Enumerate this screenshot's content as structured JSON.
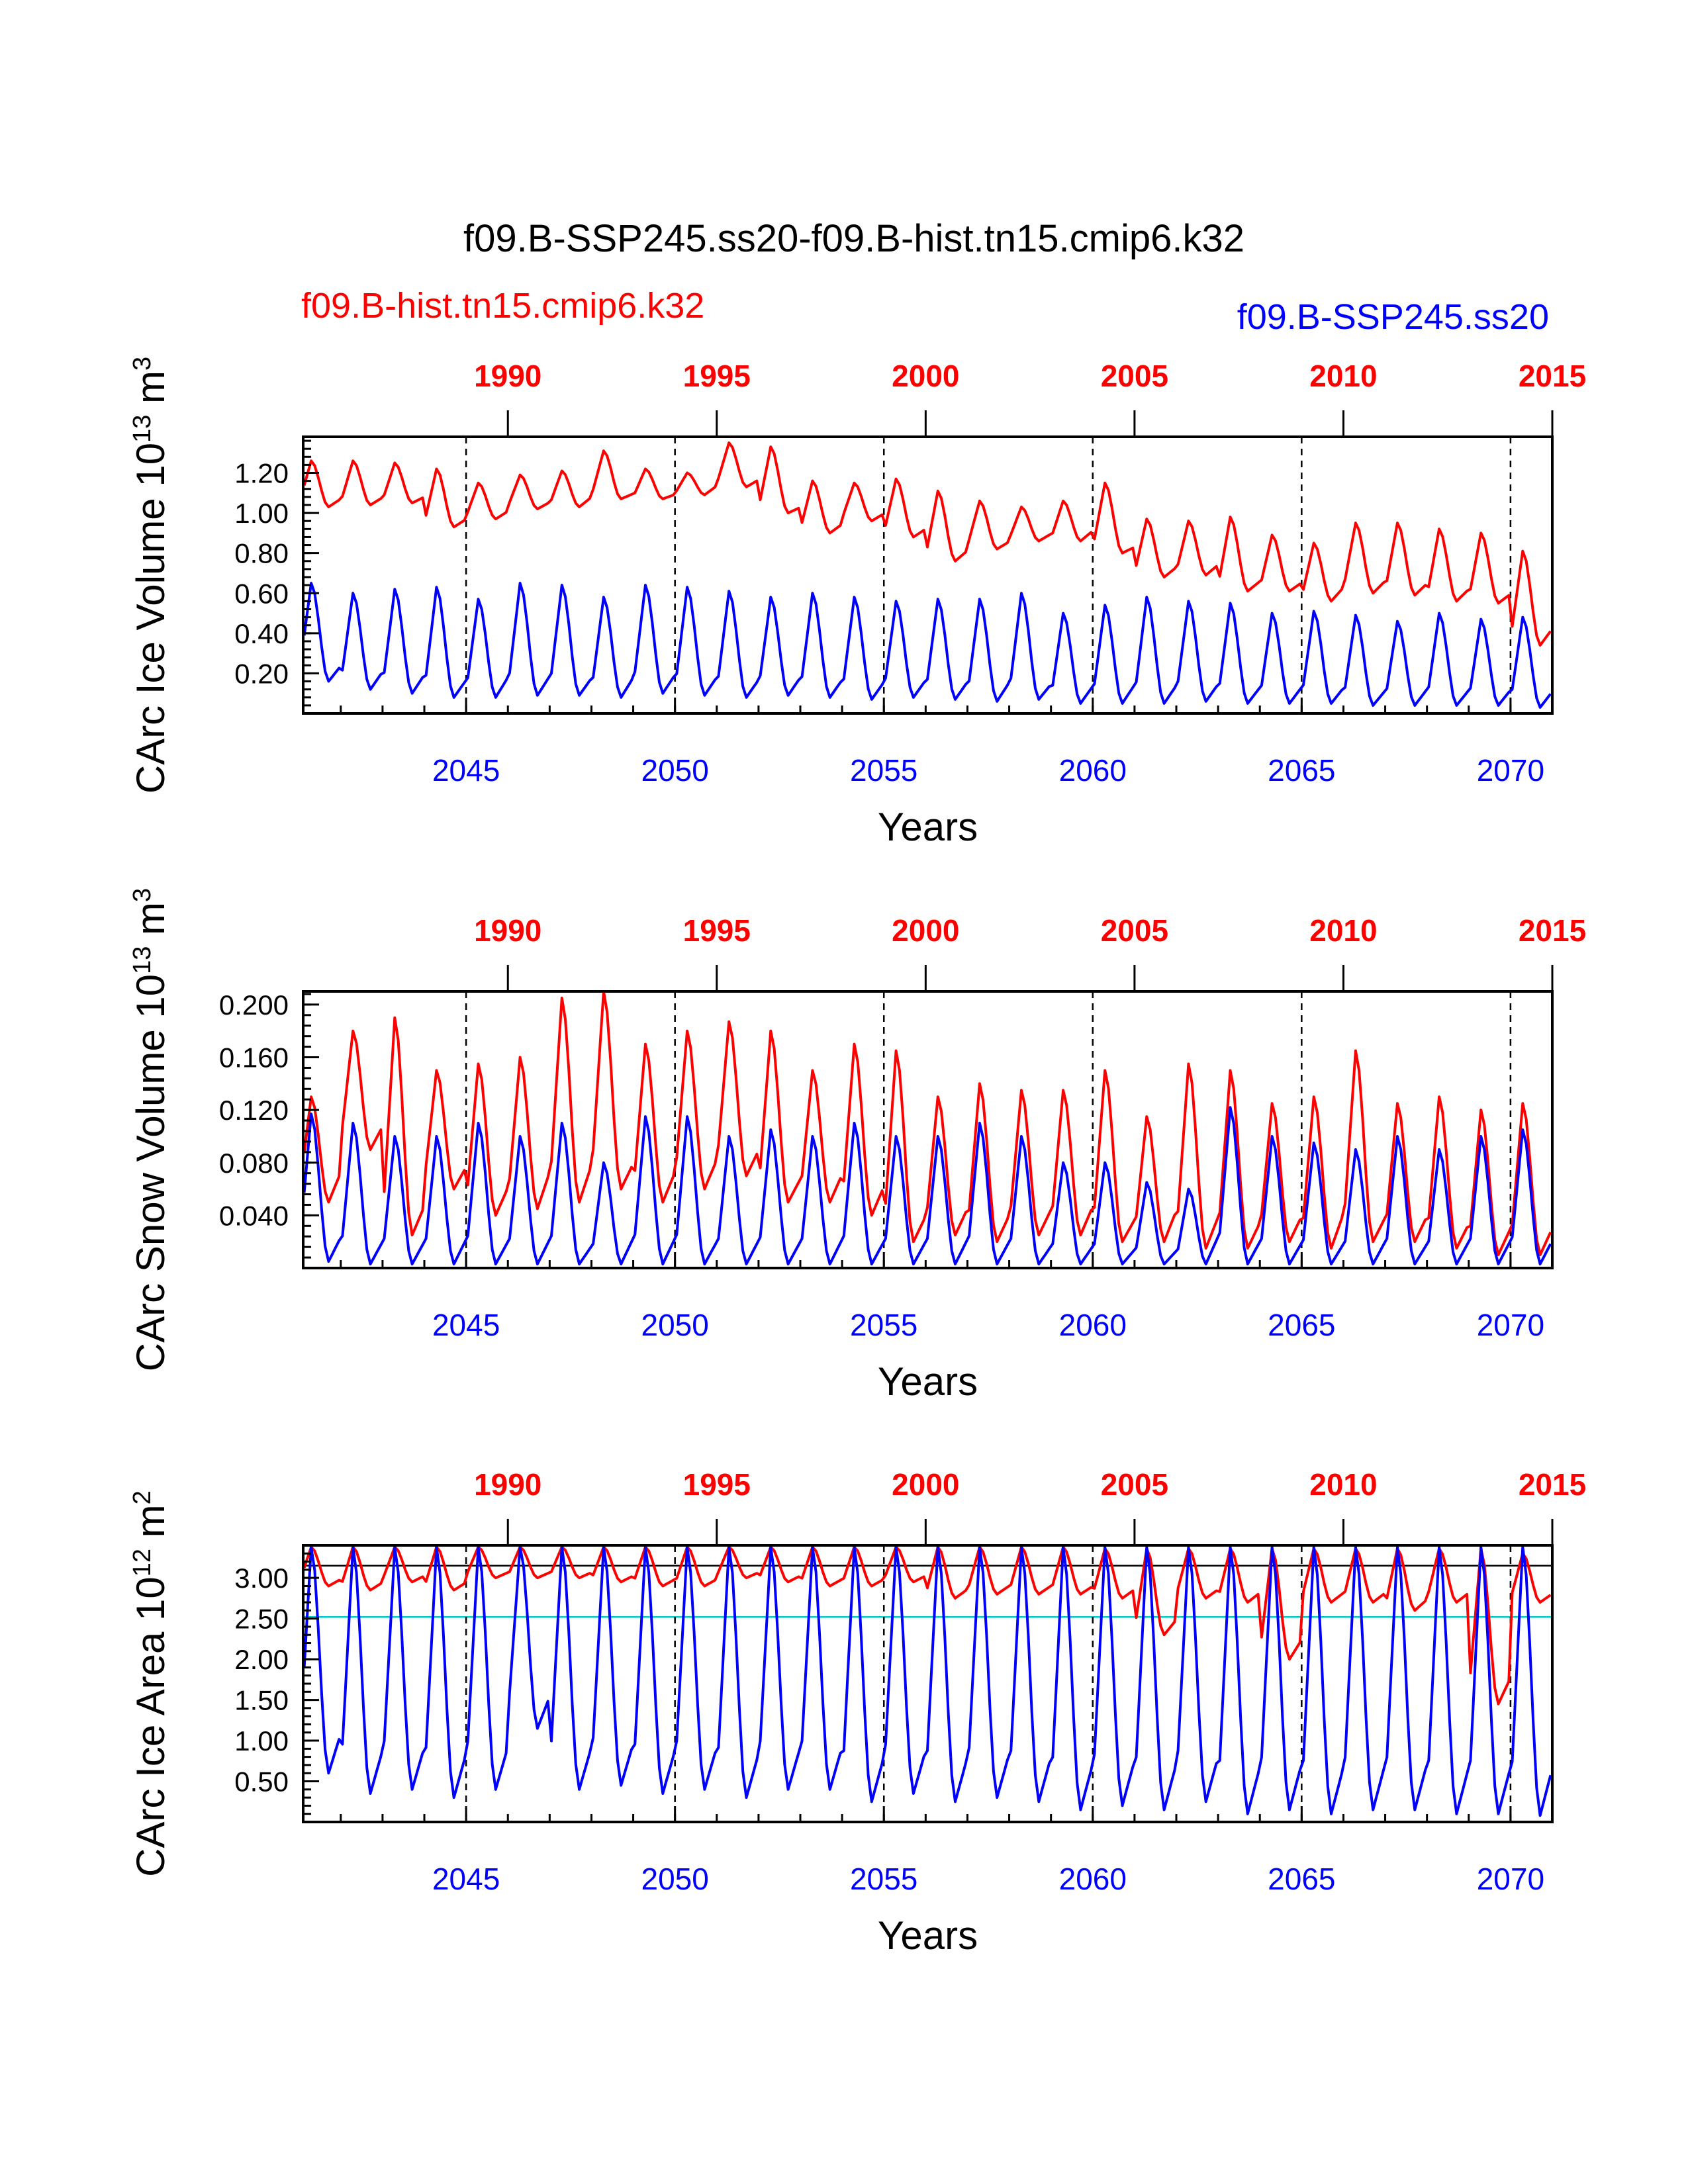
{
  "title": "f09.B-SSP245.ss20-f09.B-hist.tn15.cmip6.k32",
  "legend": {
    "left_label": "f09.B-hist.tn15.cmip6.k32",
    "right_label": "f09.B-SSP245.ss20"
  },
  "colors": {
    "hist": "#ff0000",
    "ssp": "#0000ff",
    "reference_line": "#00cccc",
    "frame": "#000000"
  },
  "chart_data": [
    {
      "type": "line",
      "id": "ice_volume",
      "ylabel_main": "CArc Ice Volume 10",
      "ylabel_exp": "13",
      "ylabel_unit": " m",
      "ylabel_unit_exp": "3",
      "xlabel": "Years",
      "ylim": [
        0.0,
        1.38
      ],
      "yticks": [
        0.2,
        0.4,
        0.6,
        0.8,
        1.0,
        1.2
      ],
      "ytick_labels": [
        "0.20",
        "0.40",
        "0.60",
        "0.80",
        "1.00",
        "1.20"
      ],
      "x_bottom_ticks": [
        2045,
        2050,
        2055,
        2060,
        2065,
        2070
      ],
      "x_top_ticks": [
        "1990",
        "1995",
        "2000",
        "2005",
        "2010",
        "2015"
      ],
      "xlim": [
        2041.1,
        2071.0
      ],
      "series": [
        {
          "name": "f09.B-hist.tn15.cmip6.k32",
          "color": "#ff0000",
          "annual_max": [
            1.26,
            1.26,
            1.25,
            1.22,
            1.15,
            1.19,
            1.21,
            1.31,
            1.22,
            1.2,
            1.35,
            1.33,
            1.16,
            1.15,
            1.17,
            1.11,
            1.06,
            1.03,
            1.06,
            1.15,
            0.97,
            0.96,
            0.98,
            0.89,
            0.85,
            0.95,
            0.95,
            0.92,
            0.9,
            0.81
          ],
          "annual_min": [
            1.03,
            1.04,
            1.05,
            0.93,
            0.97,
            1.02,
            1.03,
            1.07,
            1.07,
            1.09,
            1.13,
            1.0,
            0.9,
            0.96,
            0.88,
            0.76,
            0.82,
            0.86,
            0.86,
            0.8,
            0.68,
            0.69,
            0.61,
            0.61,
            0.56,
            0.6,
            0.59,
            0.56,
            0.55,
            0.34
          ]
        },
        {
          "name": "f09.B-SSP245.ss20",
          "color": "#0000ff",
          "annual_max": [
            0.65,
            0.6,
            0.62,
            0.63,
            0.57,
            0.65,
            0.64,
            0.58,
            0.64,
            0.63,
            0.61,
            0.58,
            0.6,
            0.58,
            0.56,
            0.57,
            0.57,
            0.6,
            0.5,
            0.54,
            0.58,
            0.56,
            0.55,
            0.5,
            0.51,
            0.49,
            0.46,
            0.5,
            0.47,
            0.48
          ],
          "annual_min": [
            0.16,
            0.12,
            0.1,
            0.08,
            0.08,
            0.09,
            0.09,
            0.08,
            0.1,
            0.09,
            0.08,
            0.09,
            0.08,
            0.07,
            0.08,
            0.07,
            0.06,
            0.07,
            0.05,
            0.05,
            0.05,
            0.06,
            0.05,
            0.05,
            0.05,
            0.04,
            0.04,
            0.04,
            0.04,
            0.03
          ]
        }
      ]
    },
    {
      "type": "line",
      "id": "snow_volume",
      "ylabel_main": "CArc Snow Volume 10",
      "ylabel_exp": "13",
      "ylabel_unit": " m",
      "ylabel_unit_exp": "3",
      "xlabel": "Years",
      "ylim": [
        0.0,
        0.21
      ],
      "yticks": [
        0.04,
        0.08,
        0.12,
        0.16,
        0.2
      ],
      "ytick_labels": [
        "0.040",
        "0.080",
        "0.120",
        "0.160",
        "0.200"
      ],
      "x_bottom_ticks": [
        2045,
        2050,
        2055,
        2060,
        2065,
        2070
      ],
      "x_top_ticks": [
        "1990",
        "1995",
        "2000",
        "2005",
        "2010",
        "2015"
      ],
      "xlim": [
        2041.1,
        2071.0
      ],
      "series": [
        {
          "name": "f09.B-hist.tn15.cmip6.k32",
          "color": "#ff0000",
          "annual_max": [
            0.13,
            0.18,
            0.19,
            0.15,
            0.155,
            0.16,
            0.205,
            0.21,
            0.17,
            0.18,
            0.187,
            0.18,
            0.15,
            0.17,
            0.165,
            0.13,
            0.14,
            0.135,
            0.135,
            0.15,
            0.115,
            0.155,
            0.15,
            0.125,
            0.13,
            0.165,
            0.125,
            0.13,
            0.12,
            0.125
          ],
          "annual_min": [
            0.05,
            0.09,
            0.025,
            0.06,
            0.04,
            0.045,
            0.05,
            0.06,
            0.05,
            0.06,
            0.07,
            0.05,
            0.05,
            0.04,
            0.02,
            0.025,
            0.02,
            0.025,
            0.025,
            0.02,
            0.02,
            0.015,
            0.015,
            0.02,
            0.015,
            0.02,
            0.02,
            0.015,
            0.01,
            0.01
          ]
        },
        {
          "name": "f09.B-SSP245.ss20",
          "color": "#0000ff",
          "annual_max": [
            0.117,
            0.11,
            0.1,
            0.1,
            0.11,
            0.1,
            0.11,
            0.08,
            0.115,
            0.115,
            0.1,
            0.105,
            0.1,
            0.11,
            0.1,
            0.1,
            0.11,
            0.1,
            0.08,
            0.08,
            0.065,
            0.06,
            0.122,
            0.1,
            0.095,
            0.09,
            0.1,
            0.09,
            0.1,
            0.105
          ],
          "annual_min": [
            0.005,
            0.003,
            0.003,
            0.003,
            0.003,
            0.003,
            0.003,
            0.003,
            0.003,
            0.003,
            0.003,
            0.003,
            0.003,
            0.003,
            0.003,
            0.003,
            0.003,
            0.003,
            0.003,
            0.003,
            0.003,
            0.003,
            0.003,
            0.003,
            0.003,
            0.003,
            0.003,
            0.003,
            0.003,
            0.003
          ]
        }
      ]
    },
    {
      "type": "line",
      "id": "ice_area",
      "ylabel_main": "CArc Ice Area 10",
      "ylabel_exp": "12",
      "ylabel_unit": " m",
      "ylabel_unit_exp": "2",
      "xlabel": "Years",
      "ylim": [
        0.0,
        3.4
      ],
      "yticks": [
        0.5,
        1.0,
        1.5,
        2.0,
        2.5,
        3.0
      ],
      "ytick_labels": [
        "0.50",
        "1.00",
        "1.50",
        "2.00",
        "2.50",
        "3.00"
      ],
      "x_bottom_ticks": [
        2045,
        2050,
        2055,
        2060,
        2065,
        2070
      ],
      "x_top_ticks": [
        "1990",
        "1995",
        "2000",
        "2005",
        "2010",
        "2015"
      ],
      "xlim": [
        2041.1,
        2071.0
      ],
      "reference_lines": [
        {
          "y": 3.15,
          "color": "#000000"
        },
        {
          "y": 2.52,
          "color": "#00cccc"
        }
      ],
      "series": [
        {
          "name": "f09.B-hist.tn15.cmip6.k32",
          "color": "#ff0000",
          "annual_max": [
            3.38,
            3.38,
            3.38,
            3.38,
            3.38,
            3.38,
            3.38,
            3.38,
            3.38,
            3.38,
            3.38,
            3.38,
            3.38,
            3.38,
            3.38,
            3.38,
            3.38,
            3.38,
            3.38,
            3.36,
            3.36,
            3.36,
            3.36,
            3.36,
            3.36,
            3.36,
            3.36,
            3.36,
            3.36,
            3.3
          ],
          "annual_min": [
            2.9,
            2.85,
            2.95,
            2.85,
            3.0,
            3.0,
            3.0,
            2.95,
            2.9,
            2.9,
            3.0,
            2.95,
            2.9,
            2.9,
            2.95,
            2.75,
            2.8,
            2.8,
            2.8,
            2.75,
            2.3,
            2.75,
            2.7,
            2.0,
            2.7,
            2.7,
            2.6,
            2.7,
            1.45,
            2.7
          ]
        },
        {
          "name": "f09.B-SSP245.ss20",
          "color": "#0000ff",
          "annual_max": [
            3.38,
            3.38,
            3.38,
            3.38,
            3.38,
            3.38,
            3.38,
            3.38,
            3.38,
            3.38,
            3.38,
            3.38,
            3.38,
            3.38,
            3.38,
            3.38,
            3.38,
            3.38,
            3.38,
            3.38,
            3.38,
            3.38,
            3.38,
            3.38,
            3.38,
            3.38,
            3.38,
            3.38,
            3.38,
            3.38
          ],
          "annual_min": [
            0.6,
            0.35,
            0.4,
            0.3,
            0.4,
            1.15,
            0.4,
            0.45,
            0.35,
            0.4,
            0.3,
            0.4,
            0.4,
            0.25,
            0.35,
            0.25,
            0.3,
            0.25,
            0.15,
            0.2,
            0.15,
            0.25,
            0.1,
            0.15,
            0.1,
            0.15,
            0.15,
            0.1,
            0.1,
            0.08
          ]
        }
      ]
    }
  ]
}
